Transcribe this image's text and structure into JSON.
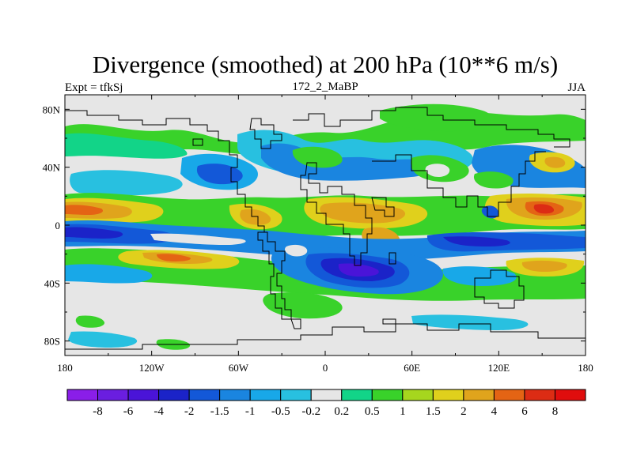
{
  "chart_data": {
    "type": "heatmap",
    "title": "Divergence (smoothed) at 200 hPa (10**6 m/s)",
    "left_label": "Expt = tfkSj",
    "center_label": "172_2_MaBP",
    "right_label": "JJA",
    "x_range": [
      -180,
      180
    ],
    "y_range": [
      -90,
      90
    ],
    "x_ticks": [
      {
        "value": -180,
        "label": "180"
      },
      {
        "value": -120,
        "label": "120W"
      },
      {
        "value": -60,
        "label": "60W"
      },
      {
        "value": 0,
        "label": "0"
      },
      {
        "value": 60,
        "label": "60E"
      },
      {
        "value": 120,
        "label": "120E"
      },
      {
        "value": 180,
        "label": "180"
      }
    ],
    "y_ticks": [
      {
        "value": 80,
        "label": "80N"
      },
      {
        "value": 40,
        "label": "40N"
      },
      {
        "value": 0,
        "label": "0"
      },
      {
        "value": -40,
        "label": "40S"
      },
      {
        "value": -80,
        "label": "80S"
      }
    ],
    "levels": [
      "-8",
      "-6",
      "-4",
      "-2",
      "-1.5",
      "-1",
      "-0.5",
      "-0.2",
      "0.2",
      "0.5",
      "1",
      "1.5",
      "2",
      "4",
      "6",
      "8"
    ],
    "colors": [
      "#8a1ee8",
      "#6a1ee0",
      "#4a14d8",
      "#1b23c8",
      "#1358d8",
      "#1a85e0",
      "#18a8e8",
      "#28c0e0",
      "#e6e6e6",
      "#12d488",
      "#39d22a",
      "#a6d61e",
      "#e0d01c",
      "#e0a41c",
      "#e46414",
      "#dc2c14",
      "#e00d0d"
    ]
  }
}
